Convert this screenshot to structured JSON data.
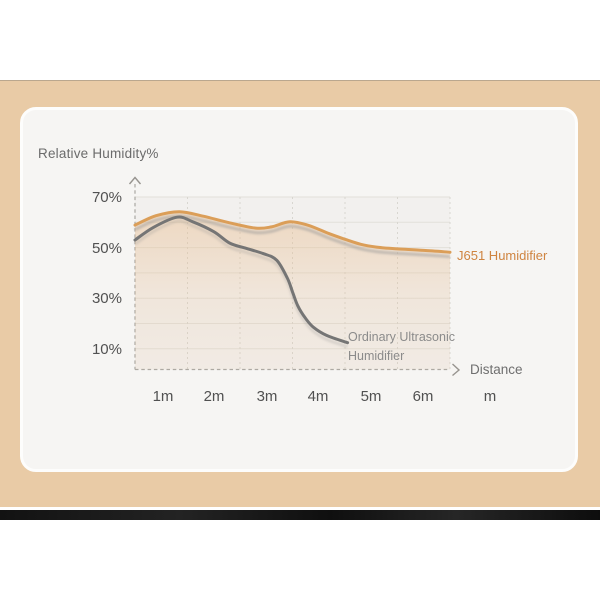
{
  "chart": {
    "title": "Relative Humidity%",
    "y_ticks_display": [
      "70%",
      "50%",
      "30%",
      "10%"
    ],
    "x_ticks_display": [
      "1m",
      "2m",
      "3m",
      "4m",
      "5m",
      "6m"
    ],
    "x_unit": "m",
    "axis_arrow_label": "Distance",
    "series_label_j651": "J651 Humidifier",
    "series_label_ordinary_line1": "Ordinary Ultrasonic",
    "series_label_ordinary_line2": "Humidifier",
    "colors": {
      "j651_line": "#db9e58",
      "j651_label": "#cf8440",
      "ordinary_line": "#757575",
      "ordinary_label": "#8b8b8b",
      "area_fill": "#e8bd8f",
      "grid_line": "#e2e0da",
      "grid_dash": "#d8d6d0",
      "axis_dash": "#aaa8a3",
      "backdrop_tan": "#e9cba6",
      "card_bg": "#f6f5f3",
      "black_bar": "#141414"
    }
  },
  "chart_data": {
    "type": "line",
    "title": "Relative Humidity%",
    "xlabel": "Distance",
    "x_unit": "m",
    "ylabel": "Relative Humidity %",
    "xlim": [
      0,
      6
    ],
    "ylim": [
      0,
      75
    ],
    "x_ticks": [
      1,
      2,
      3,
      4,
      5,
      6
    ],
    "y_tick_values": [
      70,
      50,
      30,
      10
    ],
    "y_gridlines": [
      70,
      60,
      50,
      40,
      30,
      20,
      10
    ],
    "grid": true,
    "legend_position": "inline-end-of-line",
    "series": [
      {
        "name": "J651 Humidifier",
        "x": [
          0,
          0.4,
          0.85,
          1.3,
          1.8,
          2.3,
          2.6,
          2.95,
          3.3,
          3.7,
          4.0,
          4.3,
          4.6,
          5.0,
          5.5,
          6.0
        ],
        "y": [
          58.9,
          62.6,
          64.2,
          62.4,
          59.8,
          57.7,
          58.2,
          60.2,
          58.8,
          55.5,
          53.3,
          51.3,
          50.2,
          49.5,
          48.9,
          48.2
        ]
      },
      {
        "name": "Ordinary Ultrasonic Humidifier",
        "x": [
          0,
          0.35,
          0.8,
          1.1,
          1.5,
          1.8,
          2.1,
          2.45,
          2.7,
          2.9,
          3.0,
          3.1,
          3.25,
          3.4,
          3.65,
          4.05
        ],
        "y": [
          53.0,
          58.0,
          62.0,
          60.2,
          56.3,
          51.8,
          49.8,
          47.6,
          45.0,
          38.0,
          32.5,
          27.0,
          22.0,
          18.5,
          15.3,
          12.4
        ]
      }
    ]
  }
}
